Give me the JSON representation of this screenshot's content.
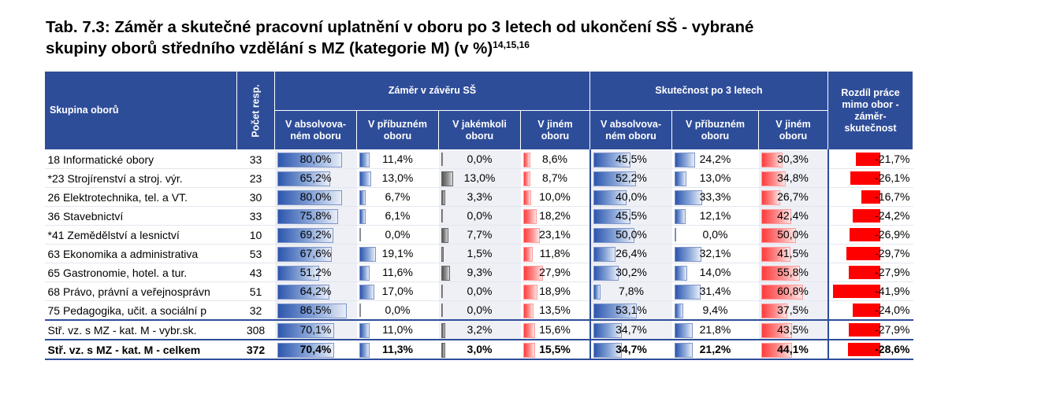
{
  "title": {
    "line1": "Tab. 7.3: Záměr a skutečné pracovní uplatnění v oboru po 3 letech od ukončení SŠ - vybrané",
    "line2": "skupiny oborů středního vzdělání s MZ (kategorie M) (v %)",
    "footnotes": "14,15,16"
  },
  "header": {
    "group_col": "Skupina oborů",
    "count_col": "Počet resp.",
    "zamer_group": "Záměr v závěru SŠ",
    "skutecnost_group": "Skutečnost po 3 letech",
    "diff_col": "Rozdíl práce mimo obor - záměr-skutečnost",
    "sub": {
      "absolv": "V absolvova-ném oboru",
      "pribuz": "V příbuzném oboru",
      "jakekoli": "V jakémkoli oboru",
      "jinem": "V jiném oboru"
    }
  },
  "rows": [
    {
      "name": "18 Informatické obory",
      "count": "33",
      "z_abs": "80,0%",
      "z_pri": "11,4%",
      "z_jak": "0,0%",
      "z_jin": "8,6%",
      "s_abs": "45,5%",
      "s_pri": "24,2%",
      "s_jin": "30,3%",
      "diff": "-21,7%",
      "v": {
        "z_abs": 80.0,
        "z_pri": 11.4,
        "z_jak": 0.0,
        "z_jin": 8.6,
        "s_abs": 45.5,
        "s_pri": 24.2,
        "s_jin": 30.3,
        "diff": -21.7
      }
    },
    {
      "name": "*23 Strojírenství a stroj. výr.",
      "count": "23",
      "z_abs": "65,2%",
      "z_pri": "13,0%",
      "z_jak": "13,0%",
      "z_jin": "8,7%",
      "s_abs": "52,2%",
      "s_pri": "13,0%",
      "s_jin": "34,8%",
      "diff": "-26,1%",
      "v": {
        "z_abs": 65.2,
        "z_pri": 13.0,
        "z_jak": 13.0,
        "z_jin": 8.7,
        "s_abs": 52.2,
        "s_pri": 13.0,
        "s_jin": 34.8,
        "diff": -26.1
      }
    },
    {
      "name": "26 Elektrotechnika, tel. a VT.",
      "count": "30",
      "z_abs": "80,0%",
      "z_pri": "6,7%",
      "z_jak": "3,3%",
      "z_jin": "10,0%",
      "s_abs": "40,0%",
      "s_pri": "33,3%",
      "s_jin": "26,7%",
      "diff": "-16,7%",
      "v": {
        "z_abs": 80.0,
        "z_pri": 6.7,
        "z_jak": 3.3,
        "z_jin": 10.0,
        "s_abs": 40.0,
        "s_pri": 33.3,
        "s_jin": 26.7,
        "diff": -16.7
      }
    },
    {
      "name": "36 Stavebnictví",
      "count": "33",
      "z_abs": "75,8%",
      "z_pri": "6,1%",
      "z_jak": "0,0%",
      "z_jin": "18,2%",
      "s_abs": "45,5%",
      "s_pri": "12,1%",
      "s_jin": "42,4%",
      "diff": "-24,2%",
      "v": {
        "z_abs": 75.8,
        "z_pri": 6.1,
        "z_jak": 0.0,
        "z_jin": 18.2,
        "s_abs": 45.5,
        "s_pri": 12.1,
        "s_jin": 42.4,
        "diff": -24.2
      }
    },
    {
      "name": "*41 Zemědělství a lesnictví",
      "count": "10",
      "z_abs": "69,2%",
      "z_pri": "0,0%",
      "z_jak": "7,7%",
      "z_jin": "23,1%",
      "s_abs": "50,0%",
      "s_pri": "0,0%",
      "s_jin": "50,0%",
      "diff": "-26,9%",
      "v": {
        "z_abs": 69.2,
        "z_pri": 0.0,
        "z_jak": 7.7,
        "z_jin": 23.1,
        "s_abs": 50.0,
        "s_pri": 0.0,
        "s_jin": 50.0,
        "diff": -26.9
      }
    },
    {
      "name": "63 Ekonomika a administrativa",
      "count": "53",
      "z_abs": "67,6%",
      "z_pri": "19,1%",
      "z_jak": "1,5%",
      "z_jin": "11,8%",
      "s_abs": "26,4%",
      "s_pri": "32,1%",
      "s_jin": "41,5%",
      "diff": "-29,7%",
      "v": {
        "z_abs": 67.6,
        "z_pri": 19.1,
        "z_jak": 1.5,
        "z_jin": 11.8,
        "s_abs": 26.4,
        "s_pri": 32.1,
        "s_jin": 41.5,
        "diff": -29.7
      }
    },
    {
      "name": "65 Gastronomie, hotel. a tur.",
      "count": "43",
      "z_abs": "51,2%",
      "z_pri": "11,6%",
      "z_jak": "9,3%",
      "z_jin": "27,9%",
      "s_abs": "30,2%",
      "s_pri": "14,0%",
      "s_jin": "55,8%",
      "diff": "-27,9%",
      "v": {
        "z_abs": 51.2,
        "z_pri": 11.6,
        "z_jak": 9.3,
        "z_jin": 27.9,
        "s_abs": 30.2,
        "s_pri": 14.0,
        "s_jin": 55.8,
        "diff": -27.9
      }
    },
    {
      "name": "68 Právo, právní a veřejnosprávn",
      "count": "51",
      "z_abs": "64,2%",
      "z_pri": "17,0%",
      "z_jak": "0,0%",
      "z_jin": "18,9%",
      "s_abs": "7,8%",
      "s_pri": "31,4%",
      "s_jin": "60,8%",
      "diff": "-41,9%",
      "v": {
        "z_abs": 64.2,
        "z_pri": 17.0,
        "z_jak": 0.0,
        "z_jin": 18.9,
        "s_abs": 7.8,
        "s_pri": 31.4,
        "s_jin": 60.8,
        "diff": -41.9
      }
    },
    {
      "name": "75 Pedagogika, učit. a sociální p",
      "count": "32",
      "z_abs": "86,5%",
      "z_pri": "0,0%",
      "z_jak": "0,0%",
      "z_jin": "13,5%",
      "s_abs": "53,1%",
      "s_pri": "9,4%",
      "s_jin": "37,5%",
      "diff": "-24,0%",
      "v": {
        "z_abs": 86.5,
        "z_pri": 0.0,
        "z_jak": 0.0,
        "z_jin": 13.5,
        "s_abs": 53.1,
        "s_pri": 9.4,
        "s_jin": 37.5,
        "diff": -24.0
      }
    },
    {
      "name": "Stř. vz. s MZ - kat. M - vybr.sk.",
      "count": "308",
      "z_abs": "70,1%",
      "z_pri": "11,0%",
      "z_jak": "3,2%",
      "z_jin": "15,6%",
      "s_abs": "34,7%",
      "s_pri": "21,8%",
      "s_jin": "43,5%",
      "diff": "-27,9%",
      "v": {
        "z_abs": 70.1,
        "z_pri": 11.0,
        "z_jak": 3.2,
        "z_jin": 15.6,
        "s_abs": 34.7,
        "s_pri": 21.8,
        "s_jin": 43.5,
        "diff": -27.9
      }
    },
    {
      "name": "Stř. vz. s MZ - kat. M - celkem",
      "count": "372",
      "z_abs": "70,4%",
      "z_pri": "11,3%",
      "z_jak": "3,0%",
      "z_jin": "15,5%",
      "s_abs": "34,7%",
      "s_pri": "21,2%",
      "s_jin": "44,1%",
      "diff": "-28,6%",
      "v": {
        "z_abs": 70.4,
        "z_pri": 11.3,
        "z_jak": 3.0,
        "z_jin": 15.5,
        "s_abs": 34.7,
        "s_pri": 21.2,
        "s_jin": 44.1,
        "diff": -28.6
      }
    }
  ]
}
